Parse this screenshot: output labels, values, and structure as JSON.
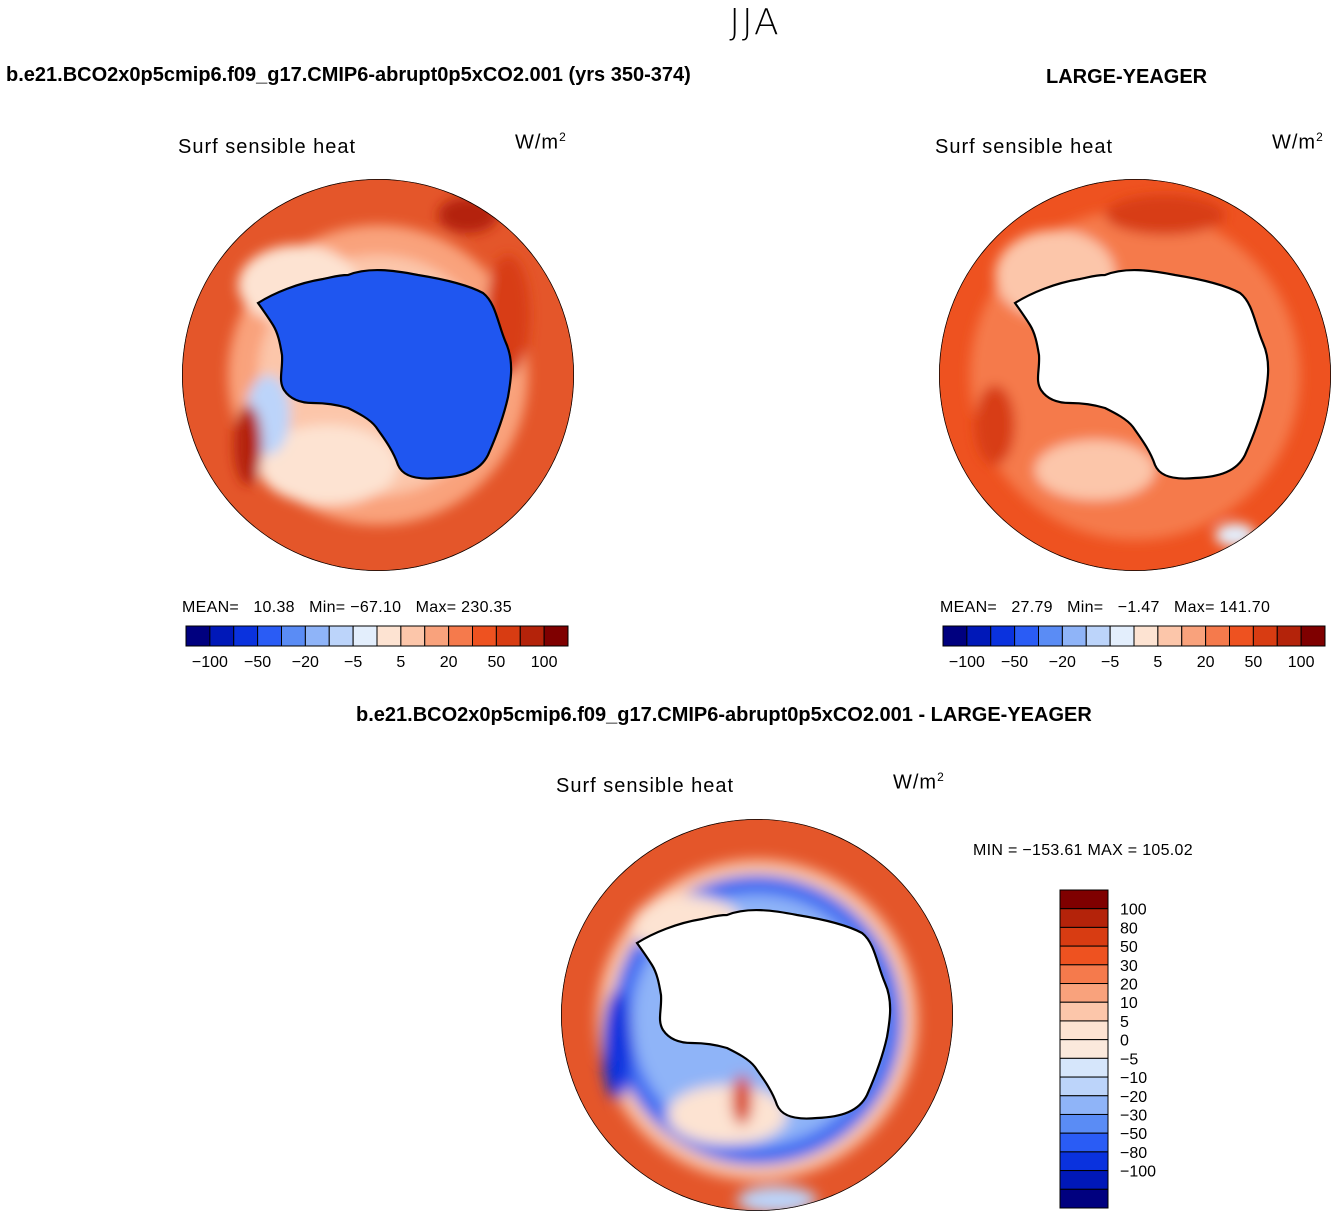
{
  "season": "JJA",
  "left_title": "b.e21.BCO2x0p5cmip6.f09_g17.CMIP6-abrupt0p5xCO2.001 (yrs 350-374)",
  "right_title": "LARGE-YEAGER",
  "diff_title": "b.e21.BCO2x0p5cmip6.f09_g17.CMIP6-abrupt0p5xCO2.001 - LARGE-YEAGER",
  "colors": {
    "land_blue": "#1f56f0",
    "land_white": "#ffffff",
    "coast": "#000000"
  },
  "chart_data": [
    {
      "type": "heatmap",
      "projection": "south-polar-stereographic",
      "panel": "model",
      "variable_label": "Surf  sensible  heat",
      "units": "W/m",
      "units_exp": "2",
      "stats": {
        "mean_label": "MEAN=",
        "mean": "10.38",
        "min_label": "Min=",
        "min": "−67.10",
        "max_label": "Max=",
        "max": "230.35"
      },
      "colorbar": {
        "colors": [
          "#00007f",
          "#0018b8",
          "#0a32de",
          "#2a5cf5",
          "#5a8cf5",
          "#8fb4f8",
          "#bcd4fa",
          "#e3eefc",
          "#fde3d2",
          "#fcc6aa",
          "#f9a27c",
          "#f57a4c",
          "#ee5220",
          "#d83c12",
          "#b4230a",
          "#7f0000"
        ],
        "tick_labels": [
          "−100",
          "−50",
          "−20",
          "−5",
          "5",
          "20",
          "50",
          "100"
        ],
        "orientation": "horizontal"
      }
    },
    {
      "type": "heatmap",
      "projection": "south-polar-stereographic",
      "panel": "obs",
      "variable_label": "Surf  sensible  heat",
      "units": "W/m",
      "units_exp": "2",
      "stats": {
        "mean_label": "MEAN=",
        "mean": "27.79",
        "min_label": "Min=",
        "min": "−1.47",
        "max_label": "Max=",
        "max": "141.70"
      },
      "colorbar": {
        "colors": [
          "#00007f",
          "#0018b8",
          "#0a32de",
          "#2a5cf5",
          "#5a8cf5",
          "#8fb4f8",
          "#bcd4fa",
          "#e3eefc",
          "#fde3d2",
          "#fcc6aa",
          "#f9a27c",
          "#f57a4c",
          "#ee5220",
          "#d83c12",
          "#b4230a",
          "#7f0000"
        ],
        "tick_labels": [
          "−100",
          "−50",
          "−20",
          "−5",
          "5",
          "20",
          "50",
          "100"
        ],
        "orientation": "horizontal"
      }
    },
    {
      "type": "heatmap",
      "projection": "south-polar-stereographic",
      "panel": "difference",
      "variable_label": "Surf  sensible  heat",
      "units": "W/m",
      "units_exp": "2",
      "stats": {
        "text": "MIN = −153.61  MAX = 105.02"
      },
      "colorbar": {
        "colors_top_to_bottom": [
          "#7f0000",
          "#b4230a",
          "#d83c12",
          "#ee5220",
          "#f57a4c",
          "#f9a27c",
          "#fcc6aa",
          "#fde3d2",
          "#fbe9dc",
          "#d6e6fb",
          "#bcd4fa",
          "#8fb4f8",
          "#5a8cf5",
          "#2a5cf5",
          "#0a32de",
          "#0018b8",
          "#00007f"
        ],
        "tick_labels_top_to_bottom": [
          "100",
          "80",
          "50",
          "30",
          "20",
          "10",
          "5",
          "0",
          "−5",
          "−10",
          "−20",
          "−30",
          "−50",
          "−80",
          "−100"
        ],
        "orientation": "vertical"
      }
    }
  ]
}
